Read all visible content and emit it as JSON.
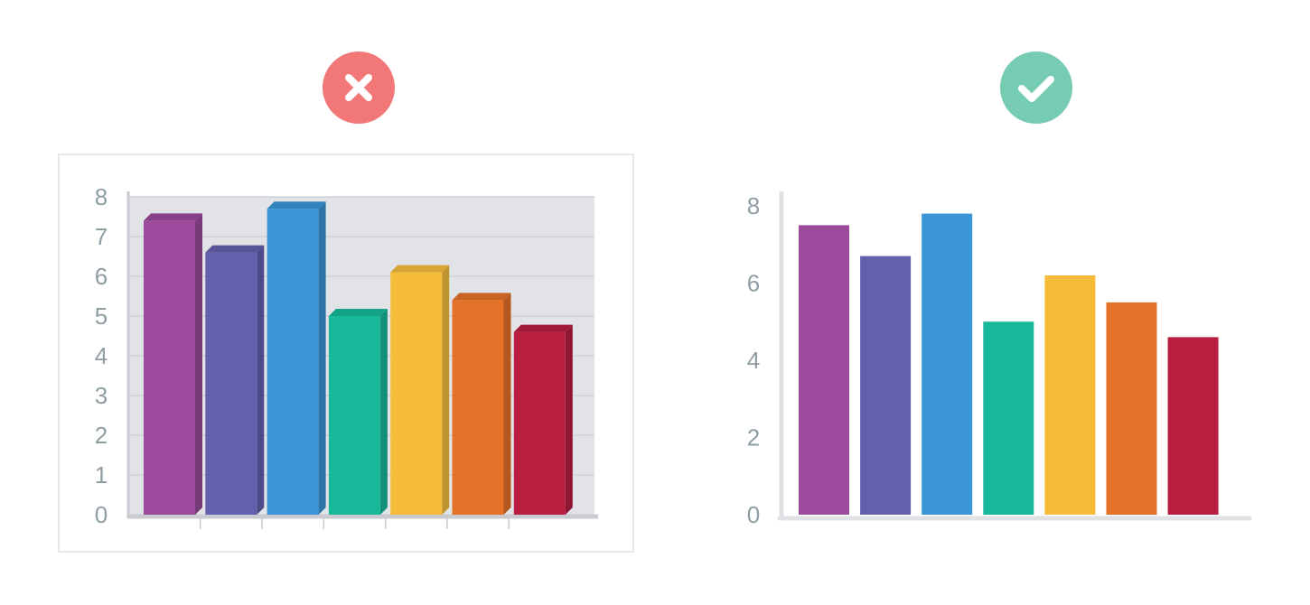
{
  "badges": {
    "bad": {
      "icon": "x-mark-icon",
      "color": "#f27878"
    },
    "good": {
      "icon": "checkmark-icon",
      "color": "#76cbb3"
    }
  },
  "chart_data": [
    {
      "type": "bar",
      "style": "3d",
      "background": "grey-panel",
      "grid": true,
      "values": [
        7.4,
        6.6,
        7.7,
        5.0,
        6.1,
        5.4,
        4.6
      ],
      "colors": [
        "#9b4a9c",
        "#6360ad",
        "#3a96d6",
        "#18b99b",
        "#f5bc3a",
        "#e47128",
        "#b81e40"
      ],
      "ylim": [
        0,
        8
      ],
      "yticks": [
        "0",
        "1",
        "2",
        "3",
        "4",
        "5",
        "6",
        "7",
        "8"
      ]
    },
    {
      "type": "bar",
      "style": "flat",
      "grid": false,
      "values": [
        7.5,
        6.7,
        7.8,
        5.0,
        6.2,
        5.5,
        4.6
      ],
      "colors": [
        "#9b4a9c",
        "#6360ad",
        "#3a96d6",
        "#18b99b",
        "#f5bc3a",
        "#e47128",
        "#b81e40"
      ],
      "ylim": [
        0,
        8
      ],
      "yticks": [
        "0",
        "2",
        "4",
        "6",
        "8"
      ]
    }
  ]
}
